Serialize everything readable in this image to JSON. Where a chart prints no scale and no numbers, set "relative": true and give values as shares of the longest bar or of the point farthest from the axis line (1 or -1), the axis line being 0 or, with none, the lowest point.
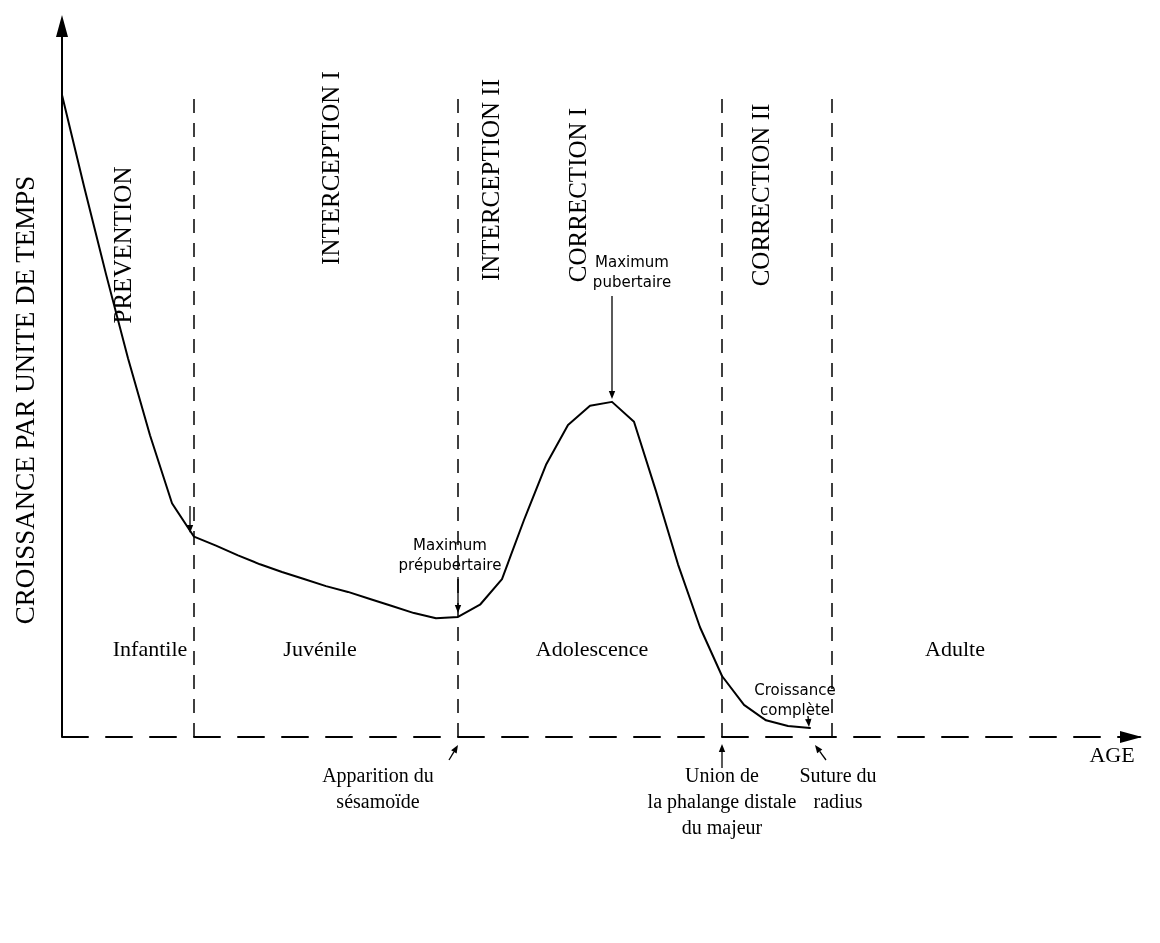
{
  "chart_data": {
    "type": "line",
    "relative": true,
    "xlabel": "AGE",
    "ylabel": "CROISSANCE PAR UNITE DE TEMPS",
    "categories": [
      null,
      null,
      null,
      null,
      null,
      null,
      null,
      null,
      null,
      null,
      null,
      null,
      null,
      null,
      null,
      null,
      null,
      null,
      null,
      null,
      null,
      null,
      null,
      null,
      null,
      null,
      null,
      null,
      null,
      null,
      null,
      null,
      null,
      null,
      null,
      null,
      null,
      null,
      null,
      null,
      null,
      null,
      null,
      null,
      null,
      null,
      null,
      null,
      null,
      null
    ],
    "series": [
      {
        "color": "#000000",
        "values": [
          1.0,
          0.858,
          0.721,
          0.59,
          0.47,
          0.364,
          0.312,
          0.298,
          0.283,
          0.269,
          0.257,
          0.246,
          0.235,
          0.226,
          0.215,
          0.204,
          0.193,
          0.185,
          0.187,
          0.206,
          0.246,
          0.338,
          0.424,
          0.486,
          0.516,
          0.522,
          0.491,
          0.383,
          0.269,
          0.171,
          0.095,
          0.05,
          0.026,
          0.017,
          0.014,
          null,
          null,
          null,
          null,
          null,
          null,
          null,
          null,
          null,
          null,
          null,
          null,
          null,
          null,
          null
        ]
      }
    ],
    "marker": "none",
    "line_style": "solid",
    "grid": "x",
    "annotations": [
      "PREVENTION",
      "INTERCEPTION I",
      "INTERCEPTION II",
      "CORRECTION I",
      "CORRECTION II",
      "Infantile",
      "Juvénile",
      "Adolescence",
      "Adulte",
      "Maximum prépubertaire",
      "Maximum pubertaire",
      "Croissance complète",
      "Apparition du sésamoïde",
      "Union de la phalange distale du majeur",
      "Suture du radius"
    ]
  }
}
